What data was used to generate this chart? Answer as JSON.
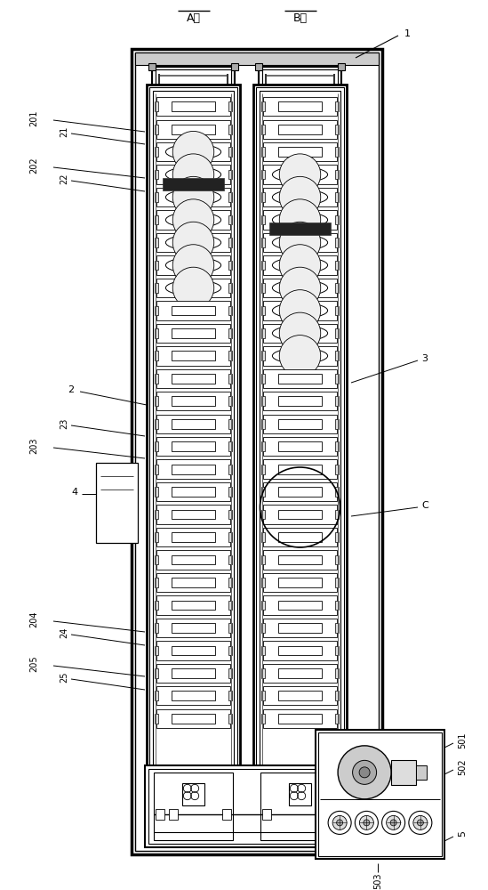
{
  "bg_color": "#ffffff",
  "line_color": "#000000",
  "labels": {
    "A_line": "A线",
    "B_line": "B线",
    "n1": "1",
    "n2": "2",
    "n3": "3",
    "n4": "4",
    "n5": "5",
    "n21": "21",
    "n22": "22",
    "n23": "23",
    "n24": "24",
    "n25": "25",
    "n201": "201",
    "n202": "202",
    "n203": "203",
    "n204": "204",
    "n205": "205",
    "n501": "501",
    "n502": "502",
    "n503": "503",
    "nC": "C"
  },
  "fig_w": 5.49,
  "fig_h": 10.0,
  "dpi": 100
}
